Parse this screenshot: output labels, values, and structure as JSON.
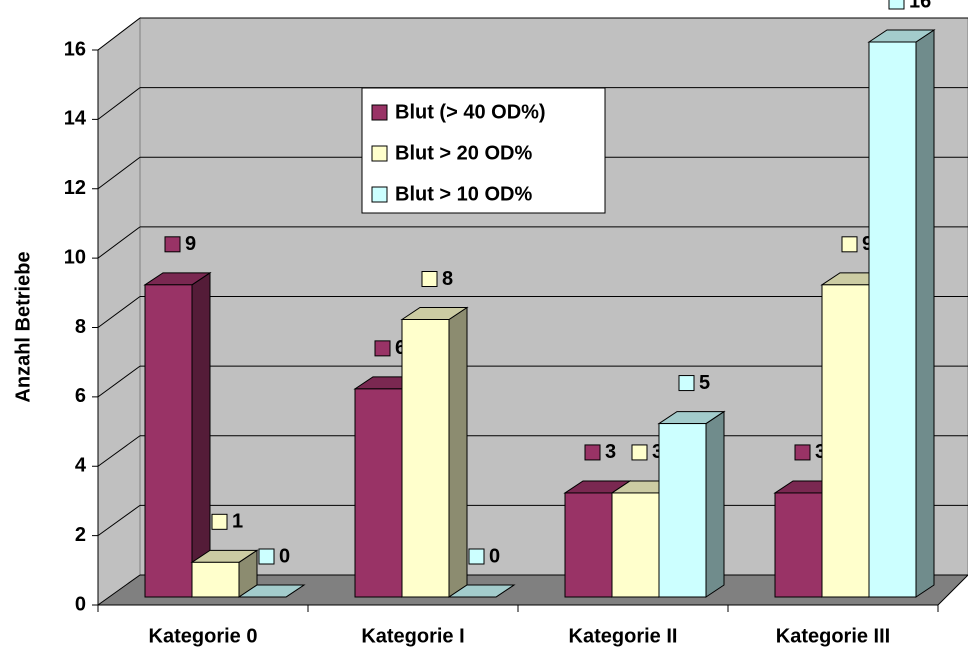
{
  "chart_data": {
    "type": "bar",
    "y_label": "Anzahl Betriebe",
    "categories": [
      "Kategorie 0",
      "Kategorie I",
      "Kategorie II",
      "Kategorie III"
    ],
    "series": [
      {
        "name": "Blut (> 40 OD%)",
        "color": "#993366",
        "values": [
          9,
          6,
          3,
          3
        ]
      },
      {
        "name": "Blut > 20 OD%",
        "color": "#ffffcc",
        "values": [
          1,
          8,
          3,
          9
        ]
      },
      {
        "name": "Blut > 10 OD%",
        "color": "#ccffff",
        "values": [
          0,
          0,
          5,
          16
        ]
      }
    ],
    "ylim": [
      0,
      16
    ],
    "yticks": [
      0,
      2,
      4,
      6,
      8,
      10,
      12,
      14,
      16
    ],
    "grid": true
  }
}
